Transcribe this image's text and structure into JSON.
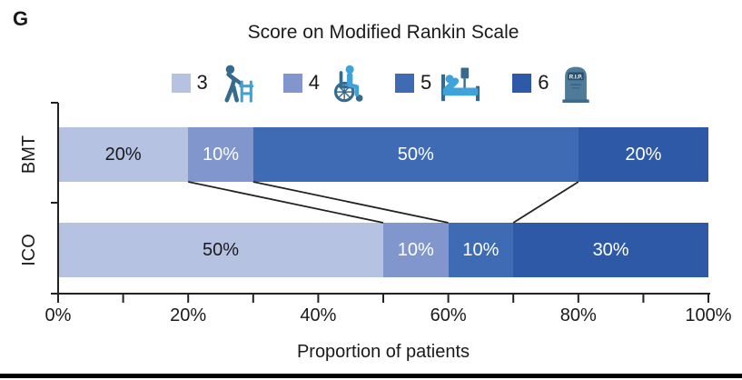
{
  "panel": {
    "label": "G"
  },
  "icons": {
    "rip_text": "R.I.P."
  },
  "colors": {
    "axis": "#222222",
    "connector": "#222222",
    "icon_dark": "#376a8f",
    "icon_light": "#3fa2d8",
    "tombstone_body": "#4d7b99",
    "tombstone_band": "#2b4f6d",
    "tombstone_base": "#3f6b89"
  },
  "chart_data": {
    "type": "bar",
    "variant": "horizontal-stacked",
    "title": "Score on Modified Rankin Scale",
    "xlabel": "Proportion of patients",
    "categories": [
      "BMT",
      "ICO"
    ],
    "series": [
      {
        "name": "3",
        "icon": "walker-icon",
        "color": "#b6c2e2",
        "label_color": "#1a1a1a",
        "values": [
          20,
          50
        ]
      },
      {
        "name": "4",
        "icon": "wheelchair-icon",
        "color": "#8096cd",
        "label_color": "#ffffff",
        "values": [
          10,
          10
        ]
      },
      {
        "name": "5",
        "icon": "hospital-bed-icon",
        "color": "#3e6bb3",
        "label_color": "#ffffff",
        "values": [
          50,
          10
        ]
      },
      {
        "name": "6",
        "icon": "tombstone-icon",
        "color": "#2e59a6",
        "label_color": "#ffffff",
        "values": [
          20,
          30
        ]
      }
    ],
    "segment_labels": {
      "BMT": [
        "20%",
        "10%",
        "50%",
        "20%"
      ],
      "ICO": [
        "50%",
        "10%",
        "10%",
        "30%"
      ]
    },
    "xlim": [
      0,
      100
    ],
    "x_tick_labels": [
      "0%",
      "20%",
      "40%",
      "60%",
      "80%",
      "100%"
    ],
    "x_minor_tick_step": 10,
    "legend_position": "top",
    "connectors_between_rows": true,
    "grid": false
  }
}
